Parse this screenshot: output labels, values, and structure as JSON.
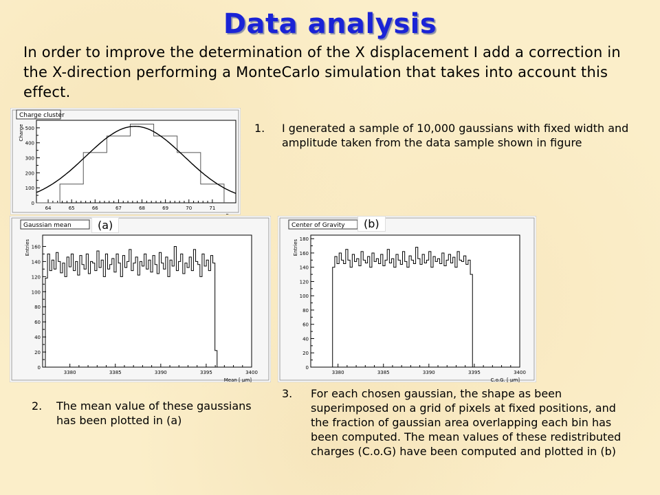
{
  "title": "Data analysis",
  "intro": "In order to improve the determination of the X displacement I add a correction in the X-direction performing a MonteCarlo simulation that takes into account this effect.",
  "charge_panel": {
    "title": "Charge cluster",
    "xlabel": "Row",
    "ylabel": "Charge"
  },
  "mean_panel": {
    "title": "Gaussian mean",
    "xlabel": "Mean [ μm]",
    "ylabel": "Entries",
    "tag": "(a)"
  },
  "cog_panel": {
    "title": "Center of Gravity",
    "xlabel": "C.o.G. [ μm]",
    "ylabel": "Entries",
    "tag": "(b)"
  },
  "notes": [
    {
      "num": "1.",
      "text": "I generated a sample of 10,000 gaussians with fixed width and amplitude taken from the data sample shown in figure"
    },
    {
      "num": "2.",
      "text": "The mean value of these gaussians has been plotted in (a)"
    },
    {
      "num": "3.",
      "text": "For each chosen gaussian, the shape as been superimposed on a grid of pixels at fixed positions, and the fraction of gaussian area overlapping each bin has been computed. The mean values of these redistributed charges (C.o.G) have been computed and plotted in (b)"
    }
  ],
  "colors": {
    "title": "#1a23d6",
    "background": "#fbeec9"
  },
  "chart_data": [
    {
      "type": "bar",
      "title": "Charge cluster",
      "xlabel": "Row",
      "ylabel": "Charge",
      "x_ticks": [
        "64",
        "65",
        "66",
        "67",
        "68",
        "69",
        "70",
        "71"
      ],
      "y_ticks": [
        "0",
        "100",
        "200",
        "300",
        "400",
        "500"
      ],
      "xlim": [
        63.5,
        72
      ],
      "ylim": [
        0,
        550
      ],
      "categories": [
        "64",
        "65",
        "66",
        "67",
        "68",
        "69",
        "70",
        "71"
      ],
      "values": [
        0,
        125,
        335,
        445,
        525,
        445,
        335,
        125
      ],
      "overlay": "gaussian fit",
      "fit": {
        "mean": 67.7,
        "sigma": 2.1,
        "amplitude": 510
      }
    },
    {
      "type": "bar",
      "title": "Gaussian mean",
      "xlabel": "Mean [ μm]",
      "ylabel": "Entries",
      "x_ticks": [
        "3380",
        "3385",
        "3390",
        "3395",
        "3400"
      ],
      "y_ticks": [
        "0",
        "20",
        "40",
        "60",
        "80",
        "100",
        "120",
        "140",
        "160"
      ],
      "xlim": [
        3377,
        3400
      ],
      "ylim": [
        0,
        175
      ],
      "bin_range": [
        3377.3,
        3396.2
      ],
      "values": [
        118,
        150,
        128,
        142,
        130,
        152,
        140,
        125,
        138,
        120,
        146,
        133,
        150,
        128,
        140,
        122,
        148,
        136,
        130,
        150,
        124,
        140,
        138,
        128,
        154,
        132,
        142,
        120,
        150,
        130,
        136,
        144,
        126,
        150,
        138,
        120,
        148,
        132,
        140,
        156,
        128,
        138,
        146,
        122,
        140,
        134,
        150,
        130,
        142,
        126,
        148,
        136,
        124,
        152,
        138,
        130,
        146,
        120,
        142,
        134,
        160,
        128,
        140,
        150,
        124,
        138,
        132,
        146,
        128,
        156,
        140,
        136,
        120,
        150,
        134,
        142,
        128,
        148,
        138,
        22
      ],
      "series": []
    },
    {
      "type": "bar",
      "title": "Center of Gravity",
      "xlabel": "C.o.G. [ μm]",
      "ylabel": "Entries",
      "x_ticks": [
        "3380",
        "3385",
        "3390",
        "3395",
        "3400"
      ],
      "y_ticks": [
        "0",
        "20",
        "40",
        "60",
        "80",
        "100",
        "120",
        "140",
        "160",
        "180"
      ],
      "xlim": [
        3377,
        3400
      ],
      "ylim": [
        0,
        185
      ],
      "bin_range": [
        3379.4,
        3394.8
      ],
      "values": [
        140,
        155,
        145,
        160,
        150,
        145,
        165,
        150,
        140,
        158,
        148,
        152,
        142,
        162,
        150,
        146,
        155,
        140,
        160,
        148,
        152,
        145,
        158,
        142,
        150,
        165,
        146,
        152,
        140,
        158,
        150,
        144,
        162,
        148,
        140,
        156,
        150,
        145,
        168,
        152,
        144,
        158,
        146,
        150,
        162,
        140,
        155,
        148,
        152,
        145,
        160,
        142,
        150,
        158,
        146,
        154,
        140,
        162,
        150,
        148,
        156,
        144,
        150,
        130
      ],
      "series": []
    }
  ]
}
